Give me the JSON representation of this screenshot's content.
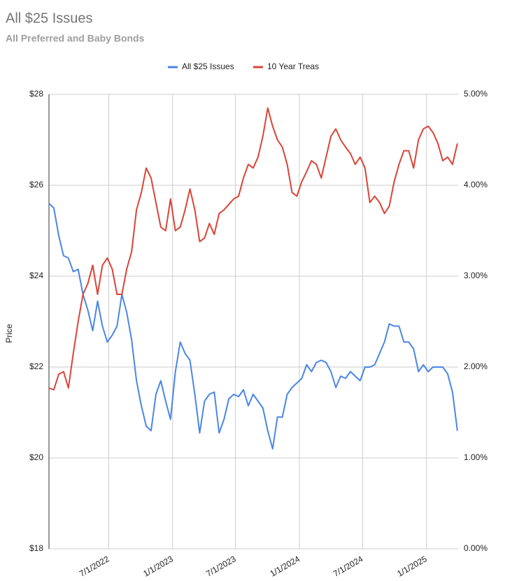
{
  "chart_data": {
    "type": "line",
    "title": "All $25 Issues",
    "subtitle": "All Preferred and Baby Bonds",
    "y_label": "Price",
    "x": [
      "2022-01-10",
      "2022-01-24",
      "2022-02-07",
      "2022-02-21",
      "2022-03-07",
      "2022-03-21",
      "2022-04-04",
      "2022-04-18",
      "2022-05-02",
      "2022-05-16",
      "2022-05-30",
      "2022-06-13",
      "2022-06-27",
      "2022-07-11",
      "2022-07-25",
      "2022-08-08",
      "2022-08-22",
      "2022-09-05",
      "2022-09-19",
      "2022-10-03",
      "2022-10-17",
      "2022-10-31",
      "2022-11-14",
      "2022-11-28",
      "2022-12-12",
      "2022-12-26",
      "2023-01-09",
      "2023-01-23",
      "2023-02-06",
      "2023-02-20",
      "2023-03-06",
      "2023-03-20",
      "2023-04-03",
      "2023-04-17",
      "2023-05-01",
      "2023-05-15",
      "2023-05-29",
      "2023-06-12",
      "2023-06-26",
      "2023-07-10",
      "2023-07-24",
      "2023-08-07",
      "2023-08-21",
      "2023-09-04",
      "2023-09-18",
      "2023-10-02",
      "2023-10-16",
      "2023-10-30",
      "2023-11-13",
      "2023-11-27",
      "2023-12-11",
      "2023-12-25",
      "2024-01-08",
      "2024-01-22",
      "2024-02-05",
      "2024-02-19",
      "2024-03-04",
      "2024-03-18",
      "2024-04-01",
      "2024-04-15",
      "2024-04-29",
      "2024-05-13",
      "2024-05-27",
      "2024-06-10",
      "2024-06-24",
      "2024-07-08",
      "2024-07-22",
      "2024-08-05",
      "2024-08-19",
      "2024-09-02",
      "2024-09-16",
      "2024-09-30",
      "2024-10-14",
      "2024-10-28",
      "2024-11-11",
      "2024-11-25",
      "2024-12-09",
      "2024-12-23",
      "2025-01-06",
      "2025-01-20",
      "2025-02-03",
      "2025-02-17",
      "2025-03-03",
      "2025-03-17",
      "2025-03-31"
    ],
    "xlim": [
      "2022-01-10",
      "2025-03-31"
    ],
    "xticks": [
      {
        "value": "2022-07-01",
        "label": "7/1/2022"
      },
      {
        "value": "2023-01-01",
        "label": "1/1/2023"
      },
      {
        "value": "2023-07-01",
        "label": "7/1/2023"
      },
      {
        "value": "2024-01-01",
        "label": "1/1/2024"
      },
      {
        "value": "2024-07-01",
        "label": "7/1/2024"
      },
      {
        "value": "2025-01-01",
        "label": "1/1/2025"
      }
    ],
    "ylim": [
      18,
      28
    ],
    "yticks": [
      {
        "value": 18,
        "label": "$18"
      },
      {
        "value": 20,
        "label": "$20"
      },
      {
        "value": 22,
        "label": "$22"
      },
      {
        "value": 24,
        "label": "$24"
      },
      {
        "value": 26,
        "label": "$26"
      },
      {
        "value": 28,
        "label": "$28"
      }
    ],
    "y2lim": [
      0,
      5
    ],
    "y2ticks": [
      {
        "value": 0,
        "label": "0.00%"
      },
      {
        "value": 1,
        "label": "1.00%"
      },
      {
        "value": 2,
        "label": "2.00%"
      },
      {
        "value": 3,
        "label": "3.00%"
      },
      {
        "value": 4,
        "label": "4.00%"
      },
      {
        "value": 5,
        "label": "5.00%"
      }
    ],
    "grid": true,
    "legend": "top",
    "series": [
      {
        "name": "All $25 Issues",
        "color": "#4a86e8",
        "values": [
          25.6,
          25.5,
          24.9,
          24.45,
          24.4,
          24.1,
          24.15,
          23.6,
          23.25,
          22.8,
          23.45,
          22.9,
          22.55,
          22.7,
          22.9,
          23.6,
          23.2,
          22.6,
          21.7,
          21.15,
          20.7,
          20.6,
          21.4,
          21.7,
          21.25,
          20.85,
          21.9,
          22.55,
          22.3,
          22.15,
          21.4,
          20.55,
          21.25,
          21.4,
          21.45,
          20.55,
          20.85,
          21.3,
          21.4,
          21.35,
          21.5,
          21.15,
          21.4,
          21.25,
          21.1,
          20.6,
          20.2,
          20.9,
          20.9,
          21.4,
          21.55,
          21.65,
          21.75,
          22.05,
          21.9,
          22.1,
          22.15,
          22.1,
          21.9,
          21.55,
          21.8,
          21.75,
          21.9,
          21.8,
          21.7,
          22.0,
          22.0,
          22.05,
          22.3,
          22.55,
          22.95,
          22.9,
          22.9,
          22.55,
          22.55,
          22.4,
          21.9,
          22.05,
          21.9,
          22.0,
          22.0,
          22.0,
          21.85,
          21.45,
          20.6
        ]
      },
      {
        "name": "10 Year Treas",
        "color": "#db4437",
        "axis": "y2",
        "values": [
          1.77,
          1.75,
          1.92,
          1.95,
          1.77,
          2.15,
          2.5,
          2.8,
          2.92,
          3.12,
          2.8,
          3.12,
          3.2,
          3.08,
          2.8,
          2.8,
          3.08,
          3.27,
          3.73,
          3.92,
          4.19,
          4.08,
          3.81,
          3.54,
          3.5,
          3.85,
          3.5,
          3.54,
          3.73,
          3.96,
          3.73,
          3.38,
          3.42,
          3.58,
          3.46,
          3.69,
          3.73,
          3.79,
          3.85,
          3.88,
          4.08,
          4.23,
          4.19,
          4.31,
          4.54,
          4.85,
          4.65,
          4.5,
          4.42,
          4.23,
          3.92,
          3.88,
          4.04,
          4.15,
          4.27,
          4.23,
          4.08,
          4.31,
          4.54,
          4.62,
          4.5,
          4.42,
          4.35,
          4.23,
          4.31,
          4.19,
          3.81,
          3.88,
          3.81,
          3.69,
          3.77,
          4.04,
          4.23,
          4.38,
          4.38,
          4.19,
          4.5,
          4.62,
          4.65,
          4.58,
          4.46,
          4.27,
          4.31,
          4.23,
          4.46
        ]
      }
    ]
  }
}
